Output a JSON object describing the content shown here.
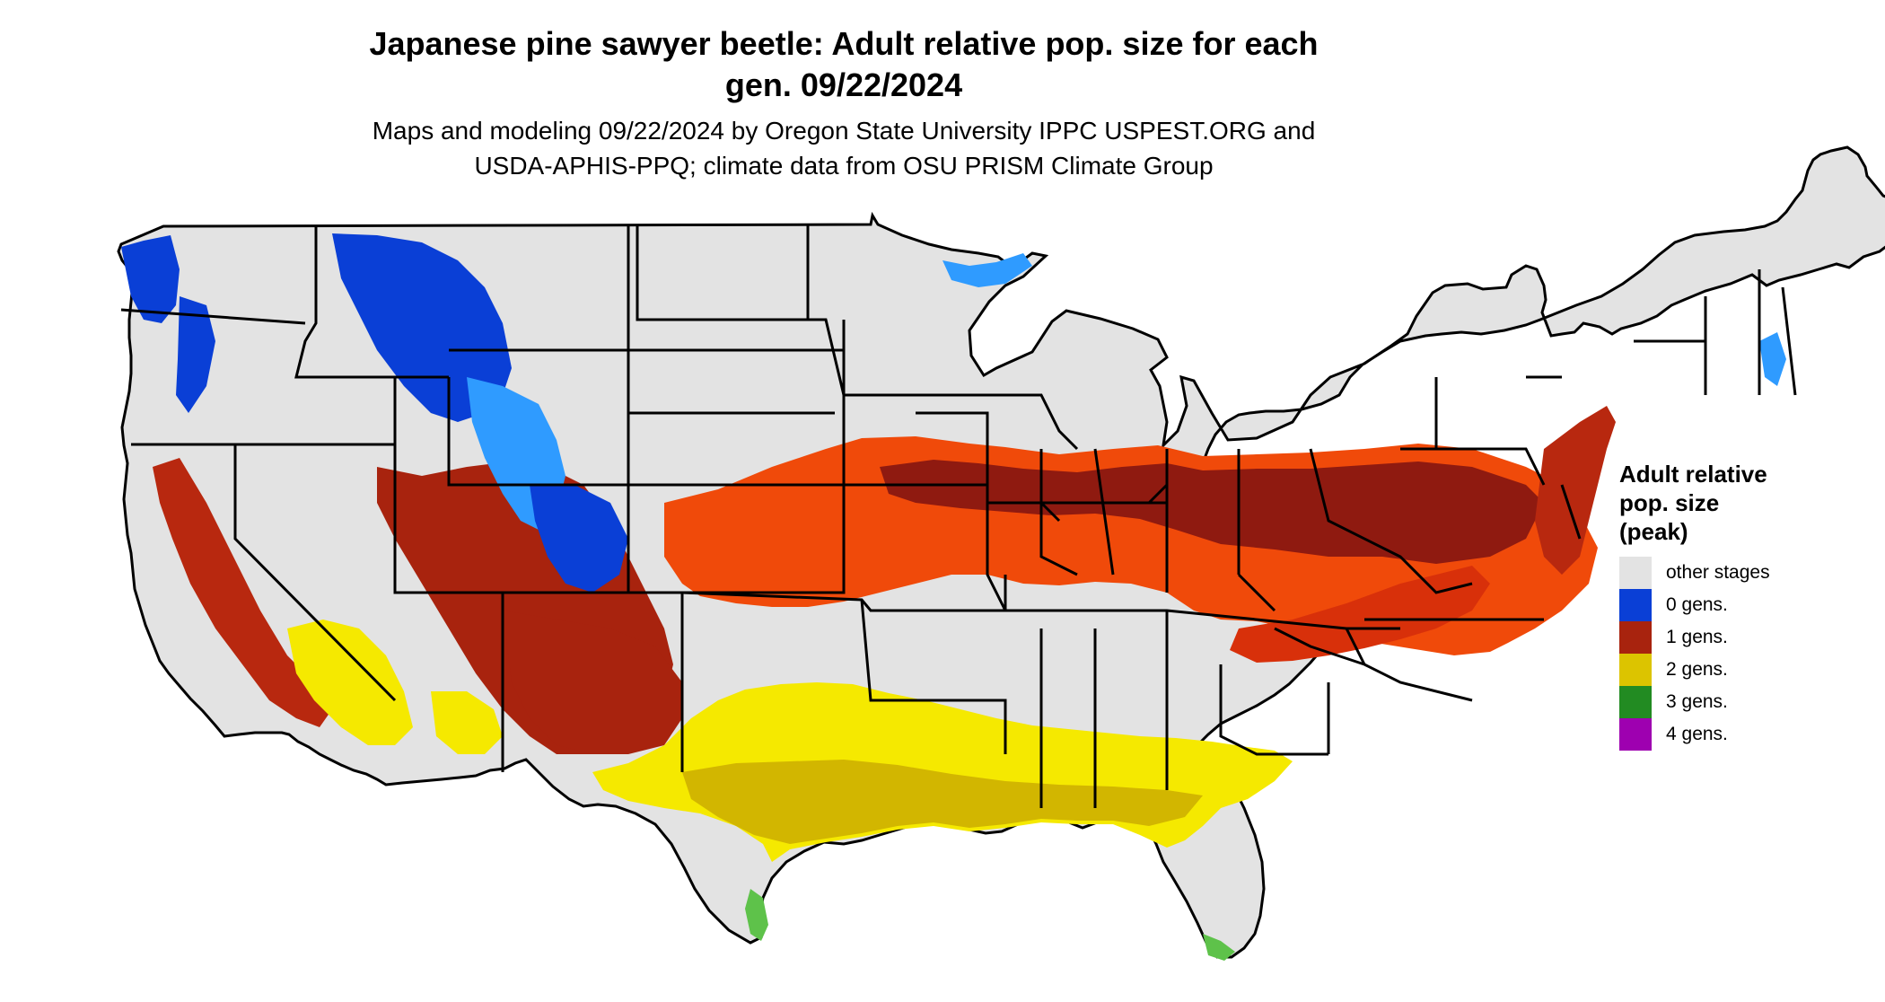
{
  "title_line1": "Japanese pine sawyer beetle: Adult relative pop. size for each",
  "title_line2": "gen. 09/22/2024",
  "subtitle_line1": "Maps and modeling 09/22/2024 by Oregon State University IPPC USPEST.ORG and",
  "subtitle_line2": "USDA-APHIS-PPQ; climate data from OSU PRISM Climate Group",
  "legend": {
    "title_line1": "Adult relative",
    "title_line2": "pop. size",
    "title_line3": "(peak)",
    "items": [
      {
        "label": "other stages",
        "color": "#e3e3e3"
      },
      {
        "label": "0 gens.",
        "color": "#0a3fd6"
      },
      {
        "label": "1 gens.",
        "color": "#a8230e"
      },
      {
        "label": "2 gens.",
        "color": "#dcc400"
      },
      {
        "label": "3 gens.",
        "color": "#228b22"
      },
      {
        "label": "4 gens.",
        "color": "#9e00b0"
      }
    ]
  },
  "map_colors": {
    "land": "#e3e3e3",
    "border": "#000000",
    "zero_gen_dark": "#0a3fd6",
    "zero_gen_light": "#2f9bff",
    "one_gen_dark": "#8f1a10",
    "one_gen_mid": "#b8280f",
    "one_gen_bright": "#f04a0a",
    "two_gen": "#f5e900",
    "two_gen_dark": "#d2b600",
    "three_gen": "#5ec24a"
  }
}
